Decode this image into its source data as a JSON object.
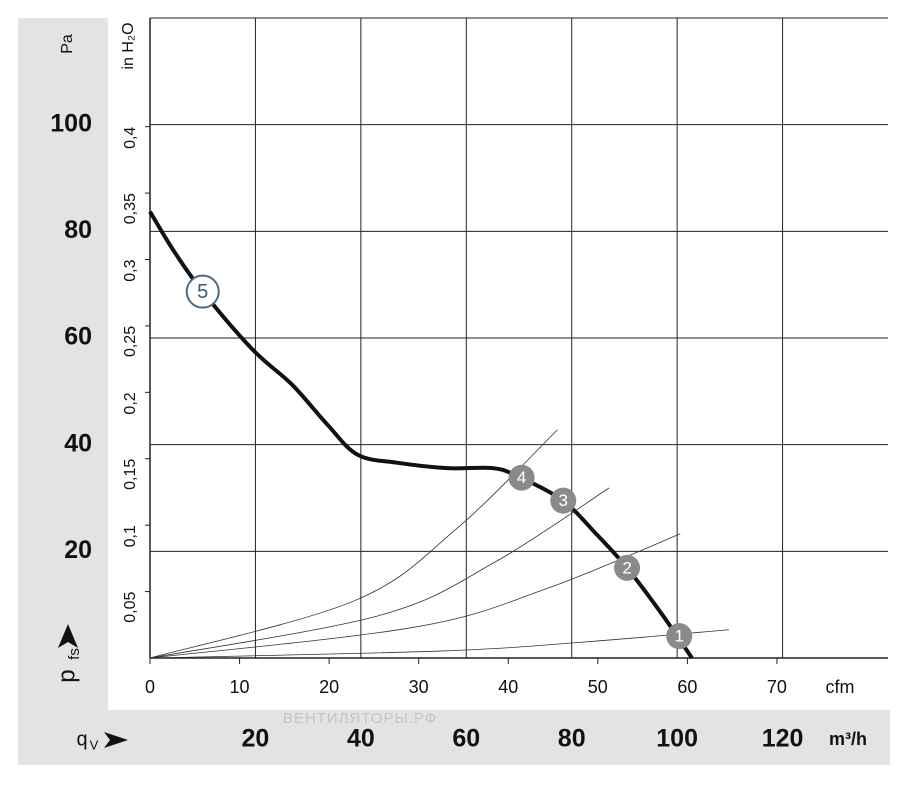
{
  "chart_data": {
    "type": "line",
    "watermark": "ВЕНТИЛЯТОРЫ.РФ",
    "y_label": "p",
    "y_label_sub": "fs",
    "x_label": "q",
    "x_label_sub": "V",
    "x_unit": "m³/h",
    "x2_unit": "cfm",
    "y_unit": "Pa",
    "y2_unit": "in H₂O",
    "xlim": [
      0,
      140
    ],
    "xticks": [
      20,
      40,
      60,
      80,
      100,
      120
    ],
    "x2lim": [
      0,
      82.4
    ],
    "x2ticks": [
      0,
      10,
      20,
      30,
      40,
      50,
      60,
      70
    ],
    "ylim": [
      0,
      120
    ],
    "yticks": [
      20,
      40,
      60,
      80,
      100
    ],
    "y2lim": [
      0,
      0.4818
    ],
    "y2ticks": [
      {
        "value": 0.05,
        "label": "0,05"
      },
      {
        "value": 0.1,
        "label": "0,1"
      },
      {
        "value": 0.15,
        "label": "0,15"
      },
      {
        "value": 0.2,
        "label": "0,2"
      },
      {
        "value": 0.25,
        "label": "0,25"
      },
      {
        "value": 0.3,
        "label": "0,3"
      },
      {
        "value": 0.35,
        "label": "0,35"
      },
      {
        "value": 0.4,
        "label": "0,4"
      }
    ],
    "grid": true,
    "series": [
      {
        "color": "#111111",
        "x": [
          0,
          4.4,
          10,
          19.5,
          27,
          33.7,
          39.4,
          47,
          56.4,
          65,
          69.7,
          78.2,
          84.8,
          90.5,
          97.2,
          102.8
        ],
        "values": [
          83.7,
          76.5,
          68.7,
          57.8,
          51.2,
          43.7,
          38.1,
          36.6,
          35.6,
          35.6,
          34.1,
          29.6,
          23.1,
          16.9,
          8.1,
          0
        ]
      },
      {
        "color": "#333333",
        "x": [
          0,
          54.9,
          82.4,
          109.8
        ],
        "values": [
          0,
          1.3,
          3,
          5.3
        ]
      },
      {
        "color": "#333333",
        "x": [
          0,
          50.3,
          75.5,
          100.6
        ],
        "values": [
          0,
          5.8,
          13.1,
          23.3
        ]
      },
      {
        "color": "#333333",
        "x": [
          0,
          43.6,
          65.3,
          87.1
        ],
        "values": [
          0,
          8,
          17.9,
          31.9
        ]
      },
      {
        "color": "#333333",
        "x": [
          0,
          38.7,
          58,
          77.3
        ],
        "values": [
          0,
          10.7,
          24.1,
          42.8
        ]
      }
    ],
    "markers": [
      {
        "label": "1",
        "x": 100.4,
        "y": 4.1,
        "color": "#8a8a8a"
      },
      {
        "label": "2",
        "x": 90.5,
        "y": 16.9,
        "color": "#8a8a8a"
      },
      {
        "label": "3",
        "x": 78.4,
        "y": 29.5,
        "color": "#8a8a8a"
      },
      {
        "label": "4",
        "x": 70.5,
        "y": 33.8,
        "color": "#8a8a8a"
      },
      {
        "label": "5",
        "x": 10,
        "y": 68.7,
        "color": "#ffffff"
      }
    ]
  }
}
